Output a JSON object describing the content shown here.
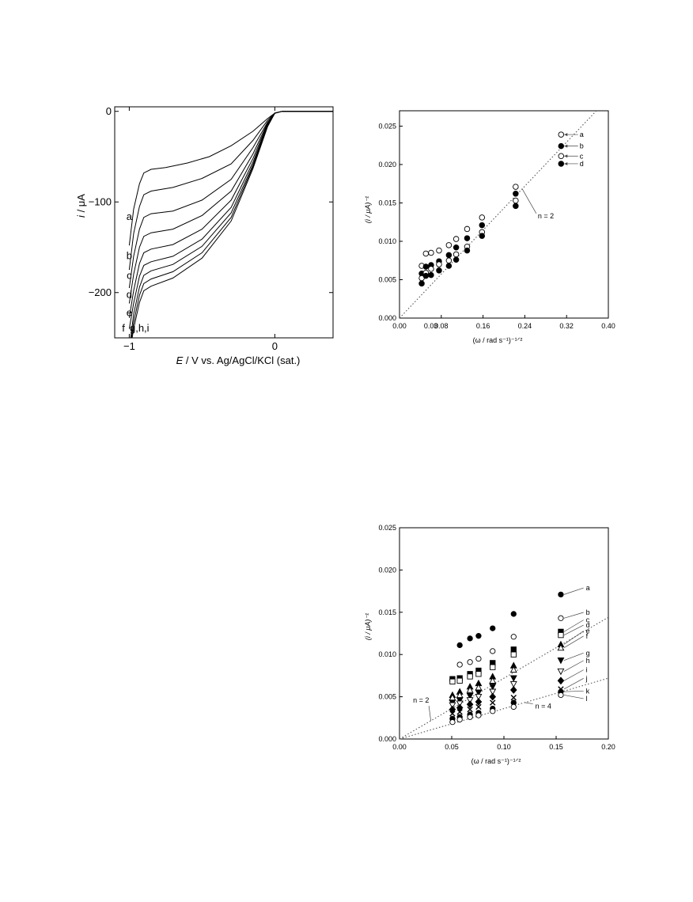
{
  "chart_data": [
    {
      "type": "line",
      "xlabel_var": "E",
      "xlabel_rest": " / V vs. Ag/AgCl/KCl (sat.)",
      "ylabel_var": "i",
      "ylabel_rest": " / μA",
      "xlim": [
        -1.1,
        0.4
      ],
      "ylim": [
        -250,
        5
      ],
      "xticks": [
        {
          "value": -1,
          "label": "−1"
        },
        {
          "value": 0,
          "label": "0"
        }
      ],
      "yticks": [
        {
          "value": 0,
          "label": "0"
        },
        {
          "value": -100,
          "label": "−100"
        },
        {
          "value": -200,
          "label": "−200"
        }
      ],
      "series_labels": [
        {
          "text": "a",
          "x": -1.0,
          "y": -120
        },
        {
          "text": "b",
          "x": -1.0,
          "y": -163
        },
        {
          "text": "c",
          "x": -1.0,
          "y": -185
        },
        {
          "text": "d",
          "x": -1.0,
          "y": -206
        },
        {
          "text": "e",
          "x": -1.0,
          "y": -226
        },
        {
          "text": "f",
          "x": -1.04,
          "y": -243
        },
        {
          "text": "g,h,i",
          "x": -0.93,
          "y": -243
        }
      ],
      "series": [
        {
          "name": "a",
          "points": [
            [
              -1.0,
              -148
            ],
            [
              -0.97,
              -108
            ],
            [
              -0.93,
              -80
            ],
            [
              -0.9,
              -68
            ],
            [
              -0.85,
              -64
            ],
            [
              -0.75,
              -62
            ],
            [
              -0.6,
              -57
            ],
            [
              -0.45,
              -50
            ],
            [
              -0.3,
              -38
            ],
            [
              -0.15,
              -22
            ],
            [
              -0.05,
              -8
            ],
            [
              0,
              -2
            ],
            [
              0.05,
              0
            ],
            [
              0.4,
              0
            ]
          ]
        },
        {
          "name": "b",
          "points": [
            [
              -1.0,
              -175
            ],
            [
              -0.97,
              -135
            ],
            [
              -0.93,
              -105
            ],
            [
              -0.9,
              -92
            ],
            [
              -0.85,
              -88
            ],
            [
              -0.7,
              -84
            ],
            [
              -0.5,
              -74
            ],
            [
              -0.3,
              -58
            ],
            [
              -0.15,
              -32
            ],
            [
              -0.05,
              -10
            ],
            [
              0,
              -2
            ],
            [
              0.05,
              0
            ],
            [
              0.4,
              0
            ]
          ]
        },
        {
          "name": "c",
          "points": [
            [
              -1.0,
              -195
            ],
            [
              -0.97,
              -160
            ],
            [
              -0.93,
              -130
            ],
            [
              -0.9,
              -117
            ],
            [
              -0.85,
              -113
            ],
            [
              -0.7,
              -110
            ],
            [
              -0.5,
              -98
            ],
            [
              -0.3,
              -75
            ],
            [
              -0.15,
              -40
            ],
            [
              -0.05,
              -12
            ],
            [
              0,
              -2
            ],
            [
              0.05,
              0
            ],
            [
              0.4,
              0
            ]
          ]
        },
        {
          "name": "d",
          "points": [
            [
              -1.0,
              -212
            ],
            [
              -0.97,
              -180
            ],
            [
              -0.93,
              -150
            ],
            [
              -0.9,
              -138
            ],
            [
              -0.85,
              -134
            ],
            [
              -0.7,
              -130
            ],
            [
              -0.5,
              -115
            ],
            [
              -0.3,
              -88
            ],
            [
              -0.15,
              -47
            ],
            [
              -0.05,
              -13
            ],
            [
              0,
              -2
            ],
            [
              0.05,
              0
            ],
            [
              0.4,
              0
            ]
          ]
        },
        {
          "name": "e",
          "points": [
            [
              -1.0,
              -228
            ],
            [
              -0.97,
              -198
            ],
            [
              -0.93,
              -168
            ],
            [
              -0.9,
              -156
            ],
            [
              -0.85,
              -152
            ],
            [
              -0.7,
              -147
            ],
            [
              -0.5,
              -130
            ],
            [
              -0.3,
              -98
            ],
            [
              -0.15,
              -52
            ],
            [
              -0.05,
              -14
            ],
            [
              0,
              -2
            ],
            [
              0.05,
              0
            ],
            [
              0.4,
              0
            ]
          ]
        },
        {
          "name": "f",
          "points": [
            [
              -1.0,
              -240
            ],
            [
              -0.97,
              -212
            ],
            [
              -0.93,
              -182
            ],
            [
              -0.9,
              -170
            ],
            [
              -0.85,
              -166
            ],
            [
              -0.7,
              -160
            ],
            [
              -0.5,
              -141
            ],
            [
              -0.3,
              -106
            ],
            [
              -0.15,
              -56
            ],
            [
              -0.05,
              -15
            ],
            [
              0,
              -2
            ],
            [
              0.05,
              0
            ],
            [
              0.4,
              0
            ]
          ]
        },
        {
          "name": "g",
          "points": [
            [
              -0.99,
              -250
            ],
            [
              -0.97,
              -224
            ],
            [
              -0.93,
              -194
            ],
            [
              -0.9,
              -181
            ],
            [
              -0.85,
              -176
            ],
            [
              -0.7,
              -169
            ],
            [
              -0.5,
              -149
            ],
            [
              -0.3,
              -112
            ],
            [
              -0.15,
              -59
            ],
            [
              -0.05,
              -16
            ],
            [
              0,
              -2
            ],
            [
              0.05,
              0
            ],
            [
              0.4,
              0
            ]
          ]
        },
        {
          "name": "h",
          "points": [
            [
              -0.985,
              -250
            ],
            [
              -0.97,
              -233
            ],
            [
              -0.93,
              -203
            ],
            [
              -0.9,
              -190
            ],
            [
              -0.85,
              -185
            ],
            [
              -0.7,
              -177
            ],
            [
              -0.5,
              -156
            ],
            [
              -0.3,
              -117
            ],
            [
              -0.15,
              -61
            ],
            [
              -0.05,
              -16
            ],
            [
              0,
              -2
            ],
            [
              0.05,
              0
            ],
            [
              0.4,
              0
            ]
          ]
        },
        {
          "name": "i",
          "points": [
            [
              -0.98,
              -250
            ],
            [
              -0.97,
              -240
            ],
            [
              -0.93,
              -211
            ],
            [
              -0.9,
              -198
            ],
            [
              -0.85,
              -193
            ],
            [
              -0.7,
              -184
            ],
            [
              -0.5,
              -162
            ],
            [
              -0.3,
              -121
            ],
            [
              -0.15,
              -63
            ],
            [
              -0.05,
              -17
            ],
            [
              0,
              -2
            ],
            [
              0.05,
              0
            ],
            [
              0.4,
              0
            ]
          ]
        }
      ]
    },
    {
      "type": "scatter",
      "xlabel": "(ω / rad s⁻¹)⁻¹ᐟ²",
      "ylabel": "(i / μA)⁻¹",
      "xlim": [
        0,
        0.4
      ],
      "ylim": [
        0,
        0.027
      ],
      "xticks": [
        {
          "value": 0,
          "label": "0.00"
        },
        {
          "value": 0.08,
          "label": "0.08"
        },
        {
          "value": 0.16,
          "label": "0.16"
        },
        {
          "value": 0.24,
          "label": "0.24"
        },
        {
          "value": 0.32,
          "label": "0.32"
        },
        {
          "value": 0.4,
          "label": "0.40"
        }
      ],
      "yticks": [
        {
          "value": 0,
          "label": "0.000"
        },
        {
          "value": 0.005,
          "label": "0.005"
        },
        {
          "value": 0.01,
          "label": "0.010"
        },
        {
          "value": 0.015,
          "label": "0.015"
        },
        {
          "value": 0.02,
          "label": "0.020"
        },
        {
          "value": 0.025,
          "label": "0.025"
        }
      ],
      "extra_tick_label": {
        "value": 0.06,
        "label": "0.03"
      },
      "fit_lines": [
        {
          "label": "n = 2",
          "slope": 0.0716,
          "label_pos": [
            0.265,
            0.013
          ]
        }
      ],
      "series": [
        {
          "name": "a",
          "marker": "open",
          "x": [
            0.0425,
            0.0505,
            0.0605,
            0.0757,
            0.0945,
            0.1085,
            0.1295,
            0.158,
            0.2225,
            0.3095
          ],
          "y": [
            0.0068,
            0.0084,
            0.0085,
            0.0088,
            0.0095,
            0.0103,
            0.0116,
            0.0131,
            0.0171,
            0.0239
          ]
        },
        {
          "name": "b",
          "marker": "filled",
          "x": [
            0.0425,
            0.0505,
            0.0605,
            0.0757,
            0.0945,
            0.1085,
            0.1295,
            0.158,
            0.2225,
            0.3095
          ],
          "y": [
            0.0058,
            0.0067,
            0.0069,
            0.0074,
            0.0082,
            0.0092,
            0.0104,
            0.0121,
            0.0162,
            0.0224
          ]
        },
        {
          "name": "c",
          "marker": "open",
          "x": [
            0.0425,
            0.0505,
            0.0605,
            0.0757,
            0.0945,
            0.1085,
            0.1295,
            0.158,
            0.2225,
            0.3095
          ],
          "y": [
            0.0052,
            0.0059,
            0.0064,
            0.007,
            0.0075,
            0.0083,
            0.0093,
            0.0112,
            0.0153,
            0.0211
          ]
        },
        {
          "name": "d",
          "marker": "filled",
          "x": [
            0.0425,
            0.0505,
            0.0605,
            0.0757,
            0.0945,
            0.1085,
            0.1295,
            0.158,
            0.2225,
            0.3095
          ],
          "y": [
            0.0045,
            0.0055,
            0.0056,
            0.0062,
            0.0068,
            0.0076,
            0.0088,
            0.0107,
            0.0146,
            0.0201
          ]
        }
      ],
      "label_marker_index": 9,
      "label_x": 0.345
    },
    {
      "type": "scatter",
      "xlabel": "(ω / rad s⁻¹)⁻¹ᐟ²",
      "ylabel": "(i / μA)⁻¹",
      "xlim": [
        0,
        0.2
      ],
      "ylim": [
        0,
        0.025
      ],
      "xticks": [
        {
          "value": 0,
          "label": "0.00"
        },
        {
          "value": 0.05,
          "label": "0.05"
        },
        {
          "value": 0.1,
          "label": "0.10"
        },
        {
          "value": 0.15,
          "label": "0.15"
        },
        {
          "value": 0.2,
          "label": "0.20"
        }
      ],
      "yticks": [
        {
          "value": 0,
          "label": "0.000"
        },
        {
          "value": 0.005,
          "label": "0.005"
        },
        {
          "value": 0.01,
          "label": "0.010"
        },
        {
          "value": 0.015,
          "label": "0.015"
        },
        {
          "value": 0.02,
          "label": "0.020"
        },
        {
          "value": 0.025,
          "label": "0.025"
        }
      ],
      "fit_lines": [
        {
          "label": "n = 2",
          "slope": 0.072,
          "label_pos": [
            0.013,
            0.0043
          ]
        },
        {
          "label": "n = 4",
          "slope": 0.036,
          "label_pos": [
            0.13,
            0.0036
          ]
        }
      ],
      "x_values": [
        0.0507,
        0.0577,
        0.0675,
        0.0757,
        0.0892,
        0.1093,
        0.1545
      ],
      "series": [
        {
          "name": "a",
          "marker": "circle-filled",
          "y": [
            null,
            0.0111,
            0.0119,
            0.0122,
            0.0131,
            0.0148,
            0.0171
          ]
        },
        {
          "name": "b",
          "marker": "circle-open",
          "y": [
            null,
            0.0088,
            0.0091,
            0.0095,
            0.0104,
            0.0121,
            0.0143
          ]
        },
        {
          "name": "c",
          "marker": "square-filled",
          "y": [
            0.0071,
            0.0072,
            0.0077,
            0.0081,
            0.009,
            0.0106,
            0.0127
          ]
        },
        {
          "name": "d",
          "marker": "square-open",
          "y": [
            0.0068,
            0.0069,
            0.0074,
            0.0077,
            0.0085,
            0.01,
            0.0123
          ]
        },
        {
          "name": "e",
          "marker": "triangle-filled",
          "y": [
            0.0052,
            0.0056,
            0.0062,
            0.0066,
            0.0074,
            0.0087,
            0.0112
          ]
        },
        {
          "name": "f",
          "marker": "triangle-open",
          "y": [
            0.0049,
            0.0052,
            0.0058,
            0.0061,
            0.0069,
            0.0082,
            0.0108
          ]
        },
        {
          "name": "g",
          "marker": "down-filled",
          "y": [
            0.0043,
            0.0046,
            0.0051,
            0.0055,
            0.0062,
            0.0072,
            0.0093
          ]
        },
        {
          "name": "h",
          "marker": "down-open",
          "y": [
            0.004,
            0.0042,
            0.0046,
            0.005,
            0.0056,
            0.0065,
            0.008
          ]
        },
        {
          "name": "i",
          "marker": "diamond-filled",
          "y": [
            0.0035,
            0.0037,
            0.0041,
            0.0044,
            0.005,
            0.0058,
            0.0069
          ]
        },
        {
          "name": "j",
          "marker": "cross",
          "y": [
            0.003,
            0.0032,
            0.0035,
            0.0038,
            0.0043,
            0.0049,
            0.0059
          ]
        },
        {
          "name": "k",
          "marker": "circle-filled",
          "y": [
            0.0024,
            0.0026,
            0.0029,
            0.0031,
            0.0036,
            0.0043,
            0.0056
          ]
        },
        {
          "name": "l",
          "marker": "circle-open",
          "y": [
            0.002,
            0.0023,
            0.0026,
            0.0028,
            0.0033,
            0.0038,
            0.0052
          ]
        }
      ],
      "label_positions_y": [
        0.0176,
        0.0147,
        0.0138,
        0.0132,
        0.0125,
        0.0119,
        0.0099,
        0.009,
        0.0079,
        0.0069,
        0.0054,
        0.0045
      ],
      "label_x": 0.1785
    }
  ]
}
